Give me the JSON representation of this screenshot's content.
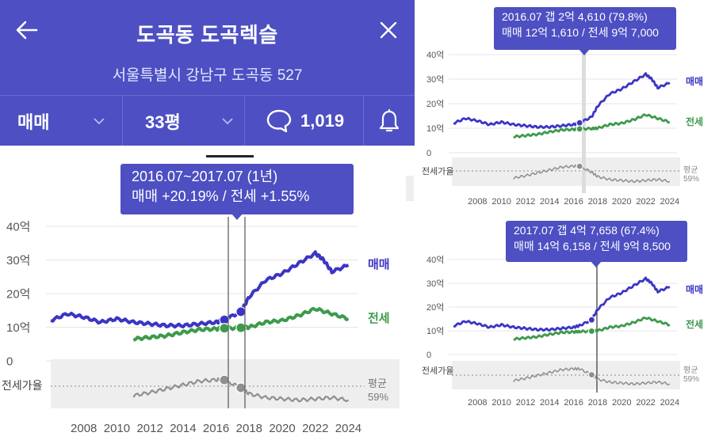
{
  "app": {
    "title": "도곡동 도곡렉슬",
    "address": "서울특별시 강남구 도곡동 527"
  },
  "filters": {
    "trade_type": "매매",
    "size": "33평",
    "comment_count": "1,019"
  },
  "icons": {
    "back": "back-arrow-icon",
    "close": "close-icon",
    "trade_dropdown": "chevron-down-icon",
    "size_dropdown": "chevron-down-icon",
    "comments": "speech-bubble-icon",
    "alarm": "bell-icon"
  },
  "colors": {
    "header_bg": "#4d4fc2",
    "sale": "#3b35c5",
    "jeonse": "#3e9a4c",
    "ratio": "#8f8f8f"
  },
  "tooltip_main": {
    "line1": "2016.07~2017.07 (1년)",
    "line2": "매매 +20.19%  /  전세 +1.55%"
  },
  "tooltip_top": {
    "line1": "2016.07  갭 2억 4,610 (79.8%)",
    "line2": "매매 12억 1,610 / 전세 9억 7,000"
  },
  "tooltip_bottom": {
    "line1": "2017.07  갭 4억 7,658 (67.4%)",
    "line2": "매매 14억 6,158 / 전세 9억 8,500"
  },
  "chart_labels": {
    "sale": "매매",
    "jeonse": "전세",
    "ratio": "전세가율",
    "avg": "평균",
    "avg_value": "59%"
  },
  "chart_data": {
    "type": "line",
    "x_ticks": [
      "2008",
      "2010",
      "2012",
      "2014",
      "2016",
      "2018",
      "2020",
      "2022",
      "2024"
    ],
    "y_ticks": [
      "0",
      "10억",
      "20억",
      "30억",
      "40억"
    ],
    "ylim": [
      0,
      40
    ],
    "ratio_average_pct": 59,
    "series": [
      {
        "name": "매매",
        "x": [
          2006,
          2007,
          2008,
          2009,
          2010,
          2011,
          2012,
          2013,
          2014,
          2015,
          2016,
          2016.5,
          2017.5,
          2018,
          2019,
          2020,
          2021,
          2022,
          2022.5,
          2023,
          2024
        ],
        "values": [
          12,
          14,
          13,
          11.5,
          12.5,
          11.5,
          11,
          10.5,
          10.5,
          11,
          11.5,
          12.2,
          14.6,
          19,
          24,
          26,
          29,
          32,
          30,
          26.5,
          28.5
        ]
      },
      {
        "name": "전세",
        "x": [
          2011,
          2012,
          2013,
          2014,
          2015,
          2016,
          2016.5,
          2017.5,
          2018,
          2019,
          2020,
          2021,
          2022,
          2023,
          2024
        ],
        "values": [
          6.5,
          7,
          7.5,
          8.5,
          9.3,
          9.5,
          9.7,
          9.85,
          10,
          11.5,
          12,
          13.5,
          15.5,
          14,
          12.5
        ]
      },
      {
        "name": "전세가율",
        "x": [
          2011,
          2012,
          2013,
          2014,
          2015,
          2016,
          2016.5,
          2017.5,
          2018,
          2019,
          2020,
          2021,
          2022,
          2023,
          2024
        ],
        "values": [
          55,
          60,
          66,
          72,
          78,
          80,
          79.8,
          67.4,
          58,
          52,
          50,
          48,
          50,
          52,
          48
        ]
      }
    ]
  }
}
